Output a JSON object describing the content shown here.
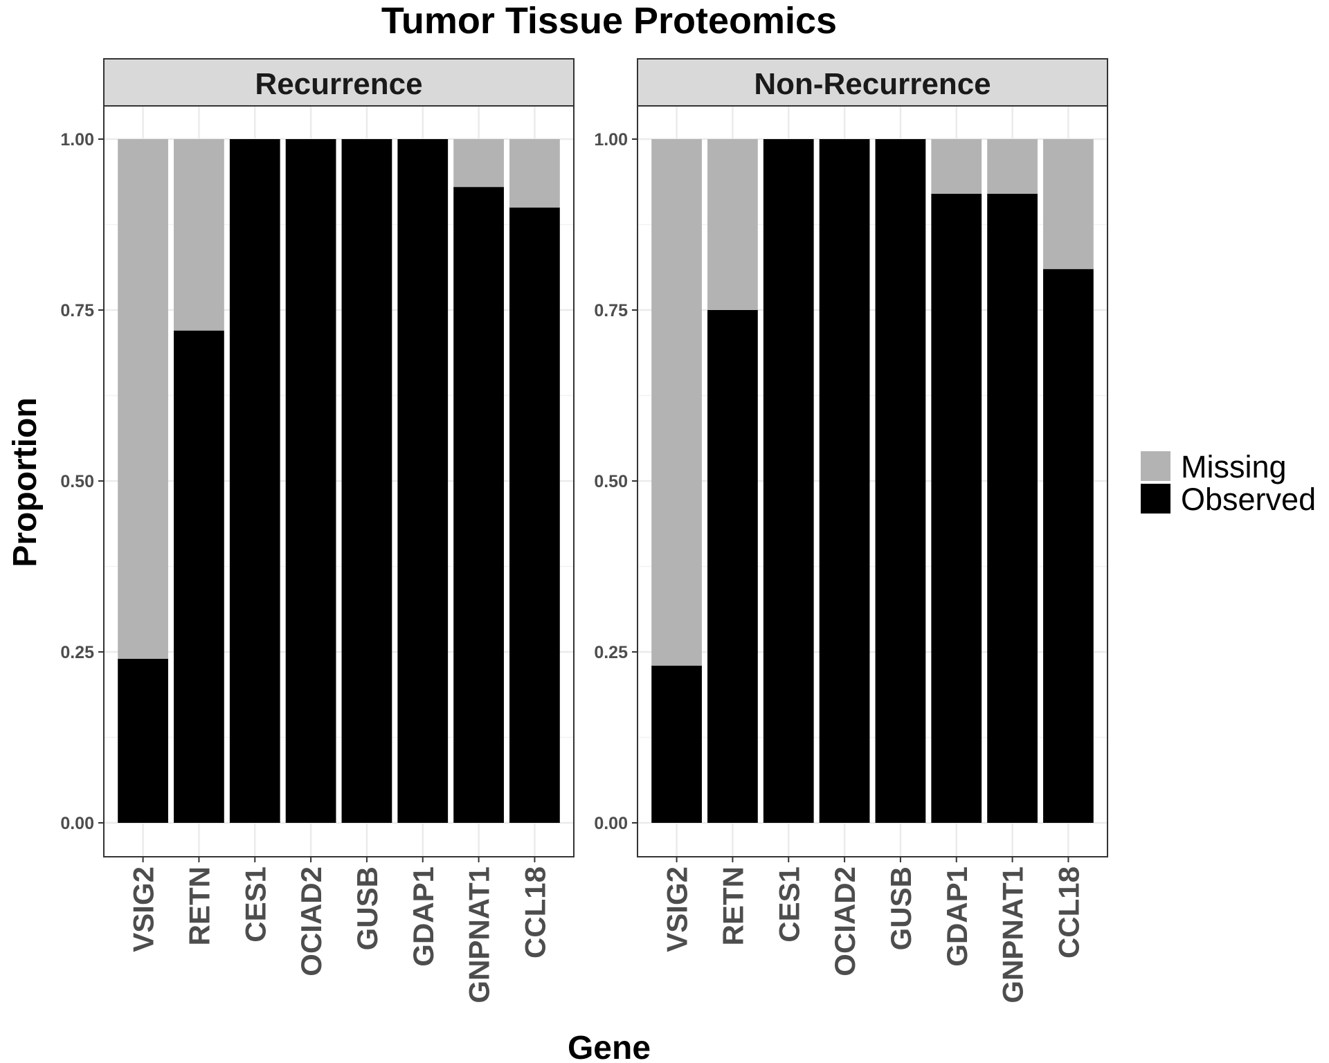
{
  "chart_data": {
    "type": "bar",
    "stacked": true,
    "title": "Tumor Tissue Proteomics",
    "xlabel": "Gene",
    "ylabel": "Proportion",
    "ylim": [
      0,
      1
    ],
    "yticks": [
      "0.00",
      "0.25",
      "0.50",
      "0.75",
      "1.00"
    ],
    "grid": true,
    "legend_position": "right",
    "categories": [
      "VSIG2",
      "RETN",
      "CES1",
      "OCIAD2",
      "GUSB",
      "GDAP1",
      "GNPNAT1",
      "CCL18"
    ],
    "series_colors": {
      "Missing": "#b3b3b3",
      "Observed": "#000000"
    },
    "legend": [
      "Missing",
      "Observed"
    ],
    "facets": [
      {
        "label": "Recurrence",
        "series": [
          {
            "name": "Observed",
            "values": [
              0.24,
              0.72,
              1.0,
              1.0,
              1.0,
              1.0,
              0.93,
              0.9
            ]
          },
          {
            "name": "Missing",
            "values": [
              0.76,
              0.28,
              0.0,
              0.0,
              0.0,
              0.0,
              0.07,
              0.1
            ]
          }
        ]
      },
      {
        "label": "Non-Recurrence",
        "series": [
          {
            "name": "Observed",
            "values": [
              0.23,
              0.75,
              1.0,
              1.0,
              1.0,
              0.92,
              0.92,
              0.81
            ]
          },
          {
            "name": "Missing",
            "values": [
              0.77,
              0.25,
              0.0,
              0.0,
              0.0,
              0.08,
              0.08,
              0.19
            ]
          }
        ]
      }
    ]
  }
}
